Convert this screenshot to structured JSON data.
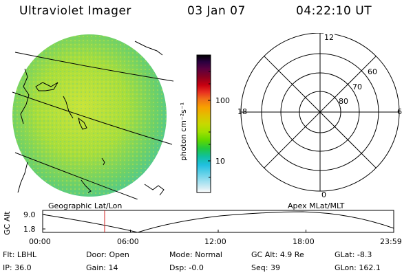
{
  "header": {
    "title": "Ultraviolet Imager",
    "date": "03 Jan 07",
    "time": "04:22:10 UT"
  },
  "map": {
    "panel_title": "Geographic Lat/Lon"
  },
  "colorbar": {
    "unit_label": "photon cm⁻²s⁻¹",
    "tick_labels": [
      "100",
      "10"
    ],
    "colors": [
      "#000000",
      "#2a003f",
      "#5a0040",
      "#8a0020",
      "#c80010",
      "#e83020",
      "#f07018",
      "#f8a000",
      "#e0c000",
      "#c8d800",
      "#a0e000",
      "#60d800",
      "#20c840",
      "#10c0a0",
      "#20c0e0",
      "#60d0e8",
      "#a0e0f0",
      "#d8eef4",
      "#ffffff"
    ]
  },
  "polar": {
    "panel_title": "Apex MLat/MLT",
    "mlt_labels": {
      "top": "12",
      "left": "18",
      "right": "6",
      "bottom": "0"
    },
    "mlat_labels": [
      "60",
      "70",
      "80"
    ]
  },
  "altitude_plot": {
    "ylabel": "GC Alt",
    "ytick_labels": [
      "9.0",
      "1.8"
    ],
    "xtick_labels": [
      "00:00",
      "06:00",
      "12:00",
      "18:00",
      "23:59"
    ]
  },
  "status": {
    "row1": [
      {
        "label": "Flt:",
        "value": "LBHL"
      },
      {
        "label": "Door:",
        "value": "Open"
      },
      {
        "label": "Mode:",
        "value": "Normal"
      },
      {
        "label": "GC Alt:",
        "value": "4.9 Re"
      },
      {
        "label": "GLat:",
        "value": "-8.3"
      }
    ],
    "row2": [
      {
        "label": "IP:",
        "value": "36.0"
      },
      {
        "label": "Gain:",
        "value": "14"
      },
      {
        "label": "Dsp:",
        "value": "-0.0"
      },
      {
        "label": "Seq:",
        "value": "39"
      },
      {
        "label": "GLon:",
        "value": "162.1"
      }
    ]
  }
}
